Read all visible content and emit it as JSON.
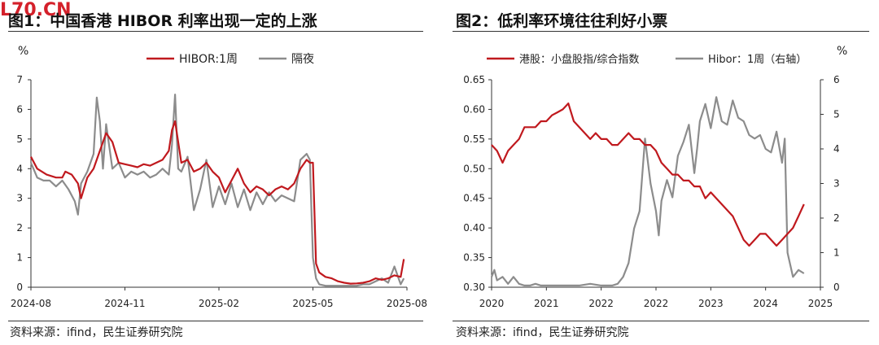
{
  "watermark": "L70.CN",
  "panels": [
    {
      "title": "图1：中国香港 HIBOR 利率出现一定的上涨",
      "source": "资料来源：ifind，民生证券研究院"
    },
    {
      "title": "图2：低利率环境往往利好小票",
      "source": "资料来源：ifind，民生证券研究院"
    }
  ],
  "chart_data": [
    {
      "type": "line",
      "ylabel": "%",
      "ylim": [
        0,
        7
      ],
      "yticks": [
        "0",
        "1",
        "2",
        "3",
        "4",
        "5",
        "6",
        "7"
      ],
      "xlim": [
        0,
        12
      ],
      "xticks": [
        {
          "label": "2024-08",
          "x": 0
        },
        {
          "label": "2024-11",
          "x": 3
        },
        {
          "label": "2025-02",
          "x": 6
        },
        {
          "label": "2025-05",
          "x": 9
        },
        {
          "label": "2025-08",
          "x": 12
        }
      ],
      "legend_position": "top",
      "colors": {
        "HIBOR:1周": "#c0191e",
        "隔夜": "#8c8c8c"
      },
      "series": [
        {
          "name": "HIBOR:1周",
          "x": [
            0,
            0.2,
            0.5,
            0.8,
            1.0,
            1.1,
            1.3,
            1.5,
            1.6,
            1.8,
            2.0,
            2.2,
            2.4,
            2.6,
            2.8,
            3.0,
            3.2,
            3.4,
            3.6,
            3.8,
            4.0,
            4.2,
            4.4,
            4.5,
            4.6,
            4.8,
            5.0,
            5.2,
            5.4,
            5.6,
            5.8,
            6.0,
            6.2,
            6.4,
            6.6,
            6.8,
            7.0,
            7.2,
            7.4,
            7.6,
            7.8,
            8.0,
            8.2,
            8.4,
            8.6,
            8.8,
            8.9,
            9.0,
            9.1,
            9.2,
            9.4,
            9.6,
            9.8,
            10.0,
            10.2,
            10.4,
            10.6,
            10.8,
            11.0,
            11.2,
            11.4,
            11.6,
            11.8,
            11.9
          ],
          "y": [
            4.4,
            4.0,
            3.8,
            3.7,
            3.7,
            3.9,
            3.8,
            3.5,
            3.0,
            3.7,
            4.0,
            4.6,
            5.2,
            4.9,
            4.2,
            4.15,
            4.1,
            4.05,
            4.15,
            4.1,
            4.2,
            4.3,
            4.6,
            5.3,
            5.6,
            4.2,
            4.3,
            3.9,
            4.0,
            4.2,
            3.9,
            3.7,
            3.2,
            3.6,
            4.0,
            3.5,
            3.2,
            3.4,
            3.3,
            3.1,
            3.3,
            3.4,
            3.3,
            3.5,
            4.0,
            4.3,
            4.2,
            4.2,
            0.8,
            0.5,
            0.35,
            0.3,
            0.2,
            0.15,
            0.12,
            0.13,
            0.15,
            0.2,
            0.3,
            0.25,
            0.3,
            0.4,
            0.35,
            0.95
          ]
        },
        {
          "name": "隔夜",
          "x": [
            0,
            0.2,
            0.4,
            0.6,
            0.8,
            1.0,
            1.2,
            1.4,
            1.5,
            1.6,
            1.8,
            2.0,
            2.1,
            2.2,
            2.3,
            2.4,
            2.6,
            2.8,
            3.0,
            3.2,
            3.4,
            3.6,
            3.8,
            4.0,
            4.2,
            4.4,
            4.5,
            4.6,
            4.7,
            4.8,
            5.0,
            5.2,
            5.4,
            5.6,
            5.8,
            6.0,
            6.2,
            6.4,
            6.6,
            6.8,
            7.0,
            7.2,
            7.4,
            7.6,
            7.8,
            8.0,
            8.2,
            8.4,
            8.6,
            8.8,
            8.9,
            9.0,
            9.1,
            9.2,
            9.4,
            9.6,
            9.8,
            10.0,
            10.2,
            10.4,
            10.6,
            10.8,
            11.0,
            11.2,
            11.4,
            11.6,
            11.8,
            11.9
          ],
          "y": [
            4.2,
            3.7,
            3.6,
            3.6,
            3.4,
            3.6,
            3.3,
            2.9,
            2.45,
            3.5,
            3.9,
            4.5,
            6.4,
            5.6,
            4.0,
            5.5,
            4.0,
            4.2,
            3.7,
            3.9,
            3.8,
            3.9,
            3.7,
            3.8,
            4.0,
            3.8,
            4.8,
            6.5,
            4.0,
            3.9,
            4.4,
            2.6,
            3.3,
            4.3,
            2.7,
            3.4,
            2.8,
            3.5,
            2.7,
            3.3,
            2.6,
            3.2,
            2.8,
            3.2,
            2.9,
            3.1,
            3.0,
            2.9,
            4.3,
            4.5,
            4.3,
            1.0,
            0.3,
            0.1,
            0.05,
            0.05,
            0.05,
            0.05,
            0.05,
            0.05,
            0.1,
            0.1,
            0.2,
            0.3,
            0.15,
            0.7,
            0.1,
            0.3
          ]
        }
      ]
    },
    {
      "type": "line",
      "ylabel_right": "%",
      "ylim_left": [
        0.3,
        0.65
      ],
      "yticks_left": [
        "0.30",
        "0.35",
        "0.40",
        "0.45",
        "0.50",
        "0.55",
        "0.60",
        "0.65"
      ],
      "ylim_right": [
        0,
        6
      ],
      "yticks_right": [
        "0",
        "1",
        "2",
        "3",
        "4",
        "5",
        "6"
      ],
      "xlim": [
        2020,
        2025.75
      ],
      "xticks": [
        {
          "label": "2020",
          "x": 2020
        },
        {
          "label": "2021",
          "x": 2021
        },
        {
          "label": "2022",
          "x": 2022
        },
        {
          "label": "2022",
          "x": 2023
        },
        {
          "label": "2023",
          "x": 2024
        },
        {
          "label": "2024",
          "x": 2025
        },
        {
          "label": "2025",
          "x": 2026
        }
      ],
      "legend_position": "top",
      "colors": {
        "港股：小盘股指/综合指数": "#c0191e",
        "Hibor：1周（右轴）": "#8c8c8c"
      },
      "series": [
        {
          "name": "港股：小盘股指/综合指数",
          "axis": "left",
          "x": [
            2020,
            2020.1,
            2020.2,
            2020.3,
            2020.4,
            2020.5,
            2020.6,
            2020.7,
            2020.8,
            2020.9,
            2021.0,
            2021.1,
            2021.2,
            2021.3,
            2021.4,
            2021.5,
            2021.6,
            2021.7,
            2021.8,
            2021.9,
            2022.0,
            2022.1,
            2022.2,
            2022.3,
            2022.4,
            2022.5,
            2022.6,
            2022.7,
            2022.8,
            2022.9,
            2023.0,
            2023.1,
            2023.2,
            2023.3,
            2023.4,
            2023.5,
            2023.6,
            2023.7,
            2023.8,
            2023.9,
            2024.0,
            2024.1,
            2024.2,
            2024.3,
            2024.4,
            2024.5,
            2024.6,
            2024.7,
            2024.8,
            2024.9,
            2025.0,
            2025.1,
            2025.2,
            2025.3,
            2025.4,
            2025.5,
            2025.6,
            2025.7
          ],
          "y": [
            0.54,
            0.53,
            0.51,
            0.53,
            0.54,
            0.55,
            0.57,
            0.57,
            0.57,
            0.58,
            0.58,
            0.59,
            0.595,
            0.6,
            0.61,
            0.58,
            0.57,
            0.56,
            0.55,
            0.56,
            0.55,
            0.55,
            0.54,
            0.54,
            0.55,
            0.56,
            0.55,
            0.55,
            0.54,
            0.54,
            0.53,
            0.51,
            0.5,
            0.49,
            0.49,
            0.48,
            0.48,
            0.47,
            0.47,
            0.45,
            0.46,
            0.45,
            0.44,
            0.43,
            0.42,
            0.4,
            0.38,
            0.37,
            0.38,
            0.39,
            0.39,
            0.38,
            0.37,
            0.38,
            0.39,
            0.4,
            0.42,
            0.44
          ]
        },
        {
          "name": "Hibor：1周（右轴）",
          "axis": "right",
          "x": [
            2020,
            2020.05,
            2020.1,
            2020.2,
            2020.3,
            2020.4,
            2020.5,
            2020.6,
            2020.7,
            2020.8,
            2020.9,
            2021.0,
            2021.2,
            2021.4,
            2021.6,
            2021.8,
            2022.0,
            2022.2,
            2022.3,
            2022.4,
            2022.5,
            2022.6,
            2022.7,
            2022.8,
            2022.9,
            2023.0,
            2023.05,
            2023.1,
            2023.2,
            2023.3,
            2023.4,
            2023.5,
            2023.6,
            2023.7,
            2023.75,
            2023.8,
            2023.9,
            2024.0,
            2024.1,
            2024.2,
            2024.3,
            2024.4,
            2024.5,
            2024.6,
            2024.7,
            2024.8,
            2024.9,
            2025.0,
            2025.1,
            2025.2,
            2025.3,
            2025.35,
            2025.4,
            2025.5,
            2025.6,
            2025.7
          ],
          "y": [
            0.3,
            0.5,
            0.2,
            0.3,
            0.1,
            0.3,
            0.1,
            0.05,
            0.05,
            0.1,
            0.05,
            0.05,
            0.05,
            0.05,
            0.05,
            0.1,
            0.05,
            0.05,
            0.1,
            0.3,
            0.7,
            1.7,
            2.2,
            4.3,
            3.0,
            2.2,
            1.5,
            2.5,
            3.1,
            2.6,
            3.8,
            4.2,
            4.7,
            3.3,
            4.0,
            4.8,
            5.3,
            4.6,
            5.5,
            4.8,
            4.7,
            5.4,
            4.9,
            4.8,
            4.4,
            4.3,
            4.4,
            4.0,
            3.9,
            4.5,
            3.6,
            4.3,
            1.0,
            0.3,
            0.5,
            0.4
          ]
        }
      ]
    }
  ]
}
